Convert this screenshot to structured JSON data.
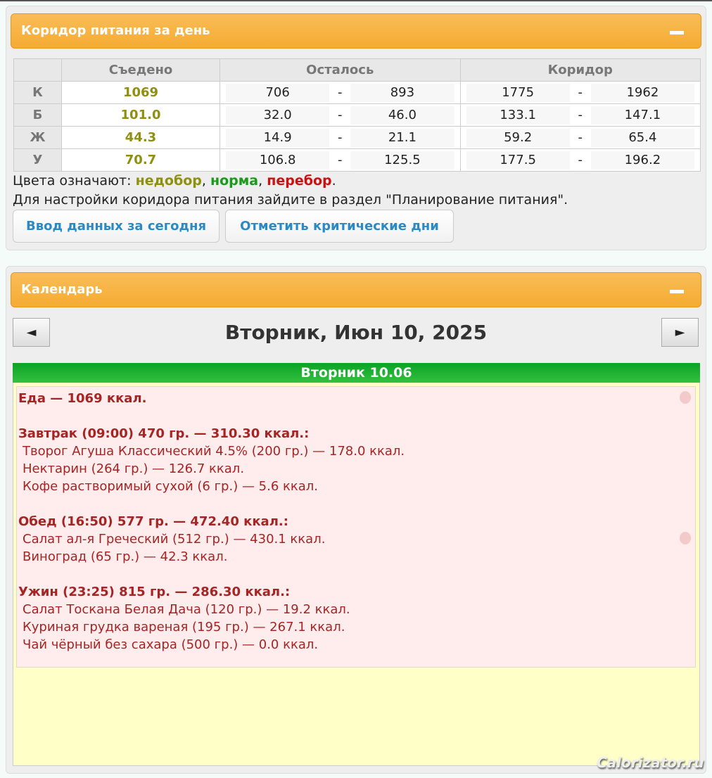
{
  "corridor": {
    "title": "Коридор питания за день",
    "headers": [
      "",
      "Съедено",
      "Осталось",
      "Коридор"
    ],
    "rows": [
      {
        "label": "К",
        "eaten": "1069",
        "left_min": "706",
        "left_max": "893",
        "cor_min": "1775",
        "cor_max": "1962"
      },
      {
        "label": "Б",
        "eaten": "101.0",
        "left_min": "32.0",
        "left_max": "46.0",
        "cor_min": "133.1",
        "cor_max": "147.1"
      },
      {
        "label": "Ж",
        "eaten": "44.3",
        "left_min": "14.9",
        "left_max": "21.1",
        "cor_min": "59.2",
        "cor_max": "65.4"
      },
      {
        "label": "У",
        "eaten": "70.7",
        "left_min": "106.8",
        "left_max": "125.5",
        "cor_min": "177.5",
        "cor_max": "196.2"
      }
    ],
    "dash": "-",
    "legend_prefix": "Цвета означают: ",
    "legend_under": "недобор",
    "legend_norm": "норма",
    "legend_over": "перебор",
    "comma": ", ",
    "dot": ".",
    "note": "Для настройки коридора питания зайдите в раздел \"Планирование питания\".",
    "btn_input": "Ввод данных за сегодня",
    "btn_critical": "Отметить критические дни",
    "colors": {
      "under": "#8f8f10",
      "norm": "#1a9a1a",
      "over": "#cc1111",
      "header": "#f6ab33"
    }
  },
  "calendar": {
    "title": "Календарь",
    "prev": "◄",
    "next": "►",
    "date": "Вторник, Июн 10, 2025",
    "day": "Вторник 10.06",
    "food_total": "Еда — 1069 ккал.",
    "meals": [
      {
        "title": "Завтрак (09:00) 470 гр. — 310.30 ккал.:",
        "items": [
          "Творог Агуша Классический 4.5% (200 гр.) — 178.0 ккал.",
          "Нектарин (264 гр.) — 126.7 ккал.",
          "Кофе растворимый сухой (6 гр.) — 5.6 ккал."
        ]
      },
      {
        "title": "Обед (16:50) 577 гр. — 472.40 ккал.:",
        "items": [
          "Салат ал-я Греческий (512 гр.) — 430.1 ккал.",
          "Виноград (65 гр.) — 42.3 ккал."
        ]
      },
      {
        "title": "Ужин (23:25) 815 гр. — 286.30 ккал.:",
        "items": [
          "Салат Тоскана Белая Дача (120 гр.) — 19.2 ккал.",
          "Куриная грудка вареная (195 гр.) — 267.1 ккал.",
          "Чай чёрный без сахара (500 гр.) — 0.0 ккал."
        ]
      }
    ]
  },
  "watermark": "Calorizator.ru"
}
